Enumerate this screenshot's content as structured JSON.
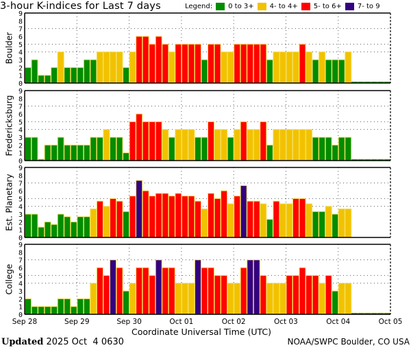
{
  "chart_data": {
    "type": "bar",
    "title": "3-hour K-indices for Last 7 days",
    "xlabel": "Coordinate Universal Time (UTC)",
    "x_tick_labels": [
      "Sep 28",
      "Sep 29",
      "Sep 30",
      "Oct 01",
      "Oct 02",
      "Oct 03",
      "Oct 04",
      "Oct 05"
    ],
    "y_tick_labels": [
      "0",
      "1",
      "2",
      "3",
      "4",
      "5",
      "6",
      "7",
      "8",
      "9"
    ],
    "ylim": [
      0,
      9
    ],
    "horizontal_gridlines": [
      4,
      5,
      7
    ],
    "legend": {
      "label": "Legend:",
      "entries": [
        {
          "label": "0 to 3+",
          "color": "#008c00"
        },
        {
          "label": "4- to 4+",
          "color": "#f2c200"
        },
        {
          "label": "5- to 6+",
          "color": "#ff0000"
        },
        {
          "label": "7- to 9",
          "color": "#330080"
        }
      ],
      "placement": "top-right"
    },
    "interval_hours": 3,
    "series": [
      {
        "name": "Boulder",
        "values": [
          2,
          3,
          1,
          1,
          2,
          4,
          2,
          2,
          2,
          3,
          3,
          4,
          4,
          4,
          4,
          2,
          4,
          6,
          6,
          5,
          6,
          5,
          4,
          5,
          5,
          5,
          5,
          3,
          5,
          5,
          4,
          4,
          5,
          5,
          5,
          5,
          5,
          3,
          4,
          4,
          4,
          4,
          5,
          4,
          3,
          4,
          3,
          3,
          3,
          4,
          null,
          null,
          null,
          null,
          null,
          null
        ],
        "missing_marker": true
      },
      {
        "name": "Fredericksburg",
        "values": [
          3,
          3,
          0,
          2,
          2,
          3,
          2,
          2,
          2,
          2,
          3,
          3,
          4,
          3,
          3,
          1,
          5,
          6,
          5,
          5,
          5,
          4,
          3,
          4,
          4,
          4,
          3,
          3,
          5,
          4,
          4,
          3,
          4,
          5,
          4,
          4,
          5,
          2,
          4,
          4,
          4,
          4,
          4,
          4,
          3,
          3,
          3,
          2,
          3,
          3,
          null,
          null,
          null,
          null,
          null,
          null
        ],
        "missing_marker": true
      },
      {
        "name": "Est. Planetary",
        "values": [
          3,
          3,
          1.33,
          2,
          1.67,
          3,
          2.67,
          2,
          2.67,
          2.67,
          3.67,
          4.67,
          4,
          5,
          4.67,
          3.33,
          5.33,
          7.33,
          6,
          5.33,
          5.67,
          5.67,
          5.33,
          5.67,
          5.33,
          5.33,
          4.67,
          3.67,
          5.67,
          5,
          6,
          4.33,
          5.33,
          6.67,
          4.67,
          4.67,
          4.33,
          2.33,
          4.67,
          4.33,
          4.33,
          5,
          5,
          4.33,
          3.33,
          3.33,
          4,
          3,
          3.67,
          3.67,
          null,
          null,
          null,
          null,
          null,
          null
        ],
        "missing_marker": false
      },
      {
        "name": "College",
        "values": [
          2,
          1,
          1,
          1,
          1,
          2,
          2,
          1,
          2,
          2,
          4,
          6,
          5,
          7,
          6,
          3,
          4,
          6,
          6,
          5,
          7,
          6,
          6,
          4,
          4,
          4,
          7,
          6,
          6,
          5,
          5,
          4,
          4,
          6,
          7,
          7,
          5,
          4,
          4,
          4,
          5,
          5,
          6,
          5,
          5,
          4,
          5,
          3,
          4,
          4,
          null,
          null,
          null,
          null,
          null,
          null
        ],
        "missing_marker": true
      }
    ]
  },
  "footer": {
    "updated_label": "Updated",
    "updated_value": "2025 Oct  4 0630",
    "credit": "NOAA/SWPC Boulder, CO USA"
  }
}
